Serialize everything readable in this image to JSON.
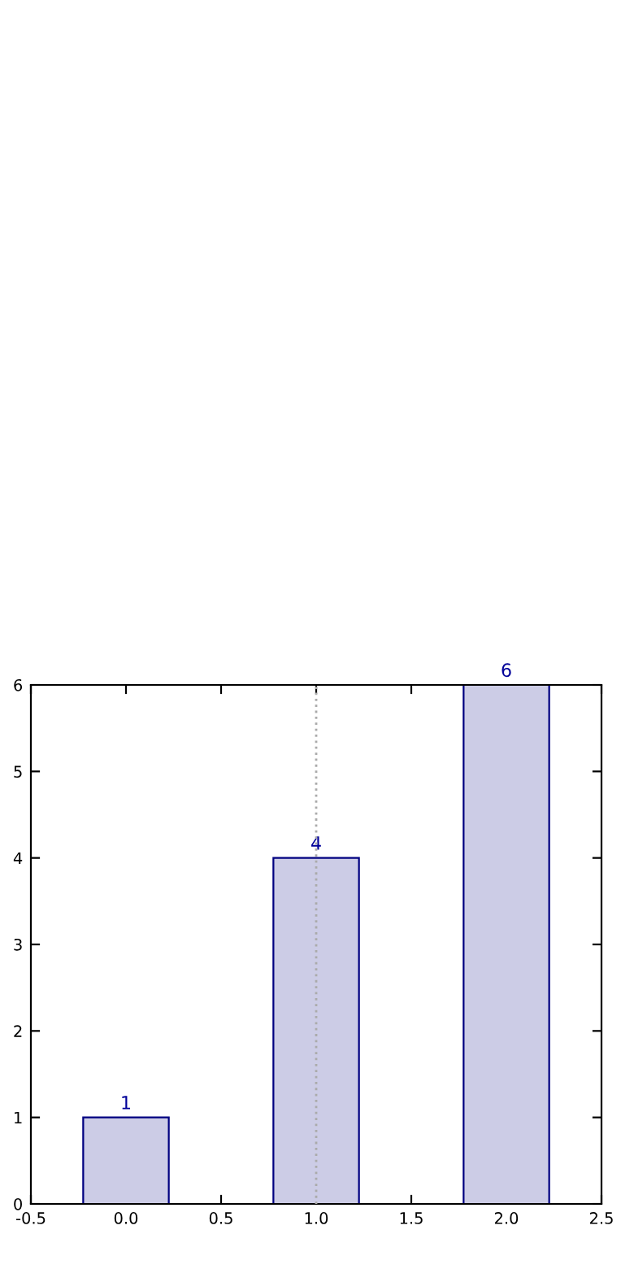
{
  "chart_data": {
    "type": "bar",
    "x": [
      0,
      1,
      2
    ],
    "values": [
      1,
      4,
      6
    ],
    "color": "#cccce6",
    "data_labels": true,
    "xlim": [
      -0.5,
      2.5
    ],
    "xticks": [
      -0.5,
      {
        "value": 0,
        "label": "0.0"
      },
      0.5,
      {
        "value": 1,
        "label": "1.0"
      },
      1.5,
      {
        "value": 2,
        "label": "2.0"
      },
      2.5
    ],
    "ylim": [
      0,
      6
    ],
    "yticks": [
      0,
      1,
      2,
      3,
      4,
      5,
      6
    ],
    "grid": false,
    "ref_lines": [
      {
        "axis": "x",
        "value": 1.0,
        "color": "#aaaaaa",
        "line_style": "dotted"
      }
    ]
  }
}
